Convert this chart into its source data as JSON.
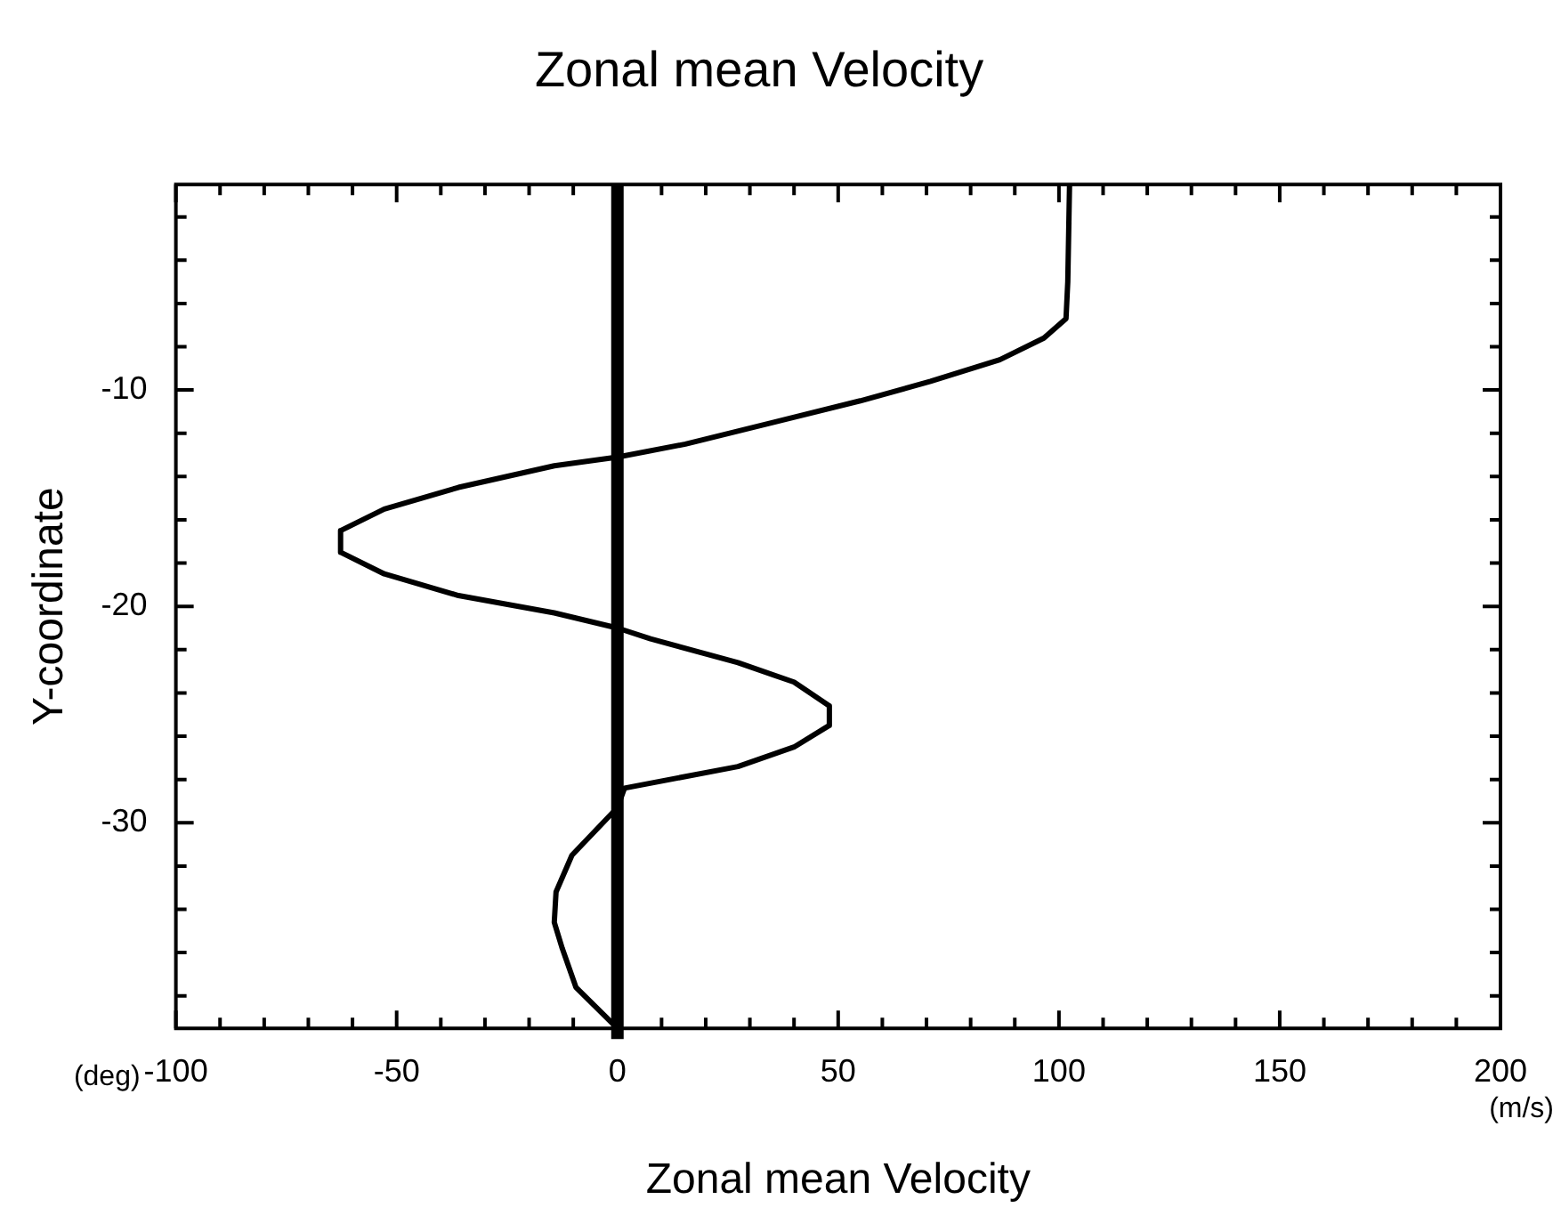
{
  "chart_data": {
    "type": "line",
    "title": "Zonal mean Velocity",
    "xlabel": "Zonal mean Velocity",
    "ylabel": "Y-coordinate",
    "annotations": [
      "(deg)",
      "(m/s)"
    ],
    "x": [
      102.4,
      102,
      101.6,
      96.6,
      86.6,
      70.9,
      55,
      35.2,
      15.4,
      0,
      -14.3,
      -36,
      -52.8,
      -62.7,
      -62.7,
      -52.8,
      -36,
      -14.3,
      0,
      7.5,
      27.3,
      40,
      48,
      48,
      40,
      27.3,
      1.6,
      0,
      -10.3,
      -13.9,
      -14.3,
      -12.5,
      -9.4,
      0
    ],
    "series": [
      {
        "color": "#000000",
        "values": [
          -0.5,
          -5,
          -6.7,
          -7.6,
          -8.6,
          -9.6,
          -10.5,
          -11.5,
          -12.5,
          -13.1,
          -13.5,
          -14.5,
          -15.5,
          -16.5,
          -17.5,
          -18.5,
          -19.5,
          -20.3,
          -21,
          -21.5,
          -22.6,
          -23.5,
          -24.6,
          -25.5,
          -26.5,
          -27.4,
          -28.4,
          -29.3,
          -31.5,
          -33.2,
          -34.6,
          -35.8,
          -37.6,
          -39.5
        ]
      }
    ],
    "xlim": [
      -100,
      200
    ],
    "xticks": [
      -100,
      {
        "value": -90,
        "label": null
      },
      {
        "value": -80,
        "label": null
      },
      {
        "value": -70,
        "label": null
      },
      {
        "value": -60,
        "label": null
      },
      -50,
      {
        "value": -40,
        "label": null
      },
      {
        "value": -30,
        "label": null
      },
      {
        "value": -20,
        "label": null
      },
      {
        "value": -10,
        "label": null
      },
      0,
      {
        "value": 10,
        "label": null
      },
      {
        "value": 20,
        "label": null
      },
      {
        "value": 30,
        "label": null
      },
      {
        "value": 40,
        "label": null
      },
      50,
      {
        "value": 60,
        "label": null
      },
      {
        "value": 70,
        "label": null
      },
      {
        "value": 80,
        "label": null
      },
      {
        "value": 90,
        "label": null
      },
      100,
      {
        "value": 110,
        "label": null
      },
      {
        "value": 120,
        "label": null
      },
      {
        "value": 130,
        "label": null
      },
      {
        "value": 140,
        "label": null
      },
      150,
      {
        "value": 160,
        "label": null
      },
      {
        "value": 170,
        "label": null
      },
      {
        "value": 180,
        "label": null
      },
      {
        "value": 190,
        "label": null
      },
      200
    ],
    "ylim": [
      -39.5,
      -0.5
    ],
    "yticks": [
      {
        "value": -2,
        "label": null
      },
      {
        "value": -4,
        "label": null
      },
      {
        "value": -6,
        "label": null
      },
      {
        "value": -8,
        "label": null
      },
      -10,
      {
        "value": -12,
        "label": null
      },
      {
        "value": -14,
        "label": null
      },
      {
        "value": -16,
        "label": null
      },
      {
        "value": -18,
        "label": null
      },
      -20,
      {
        "value": -22,
        "label": null
      },
      {
        "value": -24,
        "label": null
      },
      {
        "value": -26,
        "label": null
      },
      {
        "value": -28,
        "label": null
      },
      -30,
      {
        "value": -32,
        "label": null
      },
      {
        "value": -34,
        "label": null
      },
      {
        "value": -36,
        "label": null
      },
      {
        "value": -38,
        "label": null
      }
    ],
    "ref_lines": [
      {
        "axis": "x",
        "value": 0,
        "color": "#000000"
      }
    ],
    "marker": "none",
    "line_style": "solid"
  }
}
